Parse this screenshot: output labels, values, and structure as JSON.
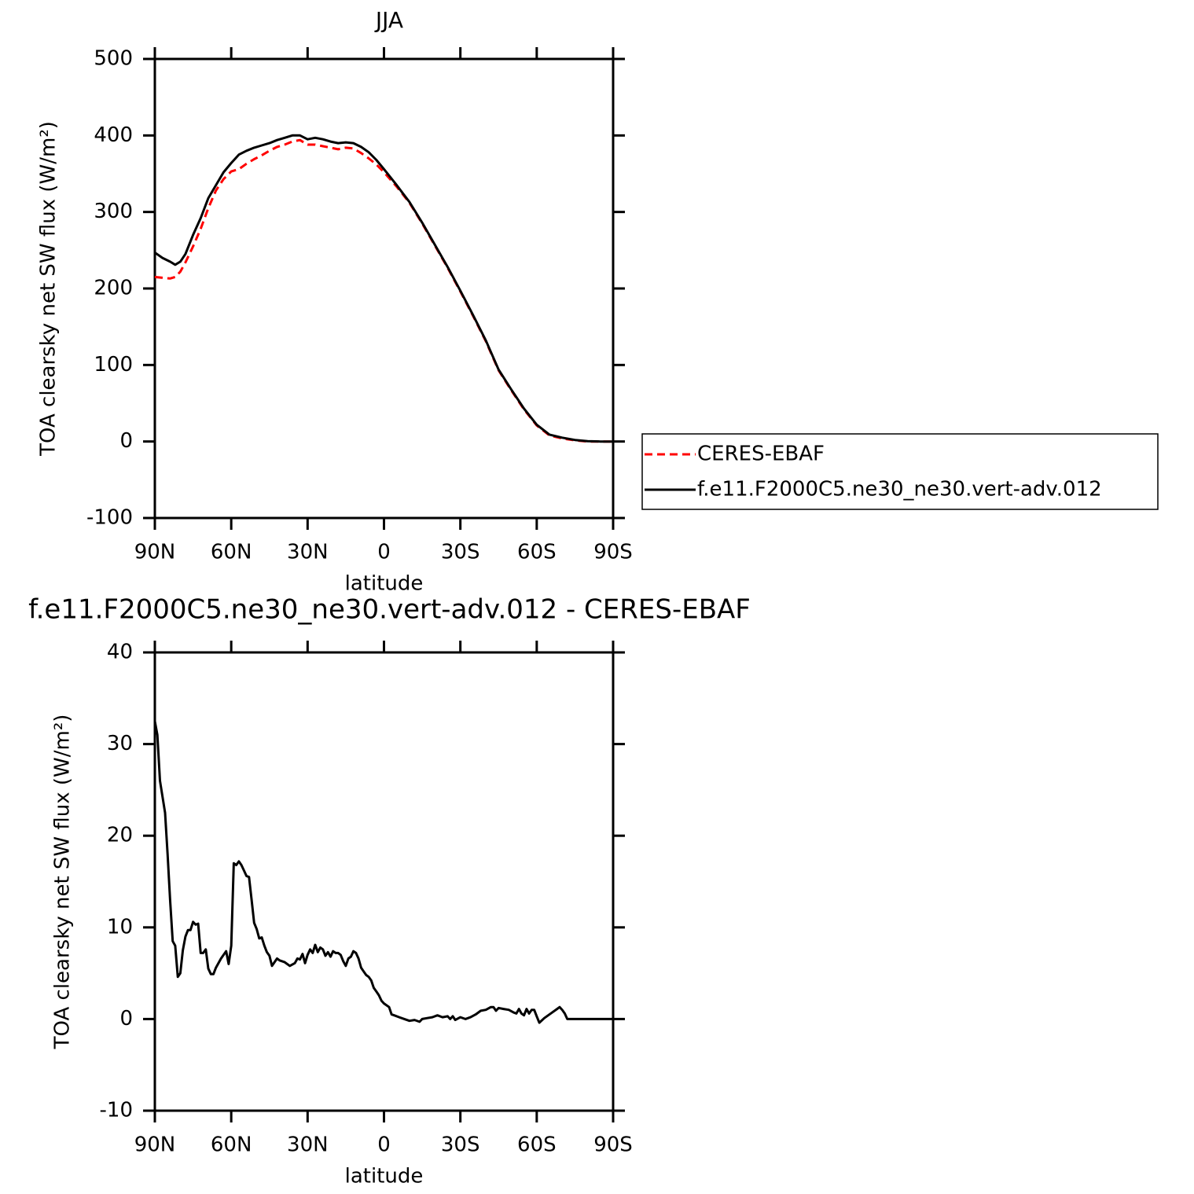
{
  "chart_data": [
    {
      "type": "line",
      "title": "JJA",
      "xlabel": "latitude",
      "ylabel": "TOA clearsky net SW flux (W/m²)",
      "xlim": [
        90,
        -90
      ],
      "ylim": [
        -100,
        500
      ],
      "xticks": [
        {
          "value": 90,
          "label": "90N"
        },
        {
          "value": 60,
          "label": "60N"
        },
        {
          "value": 30,
          "label": "30N"
        },
        0,
        {
          "value": -30,
          "label": "30S"
        },
        {
          "value": -60,
          "label": "60S"
        },
        {
          "value": -90,
          "label": "90S"
        }
      ],
      "yticks": [
        -100,
        0,
        100,
        200,
        300,
        400,
        500
      ],
      "legend": "right",
      "x": [
        90,
        87,
        84,
        82,
        80,
        78,
        75,
        72,
        69,
        66,
        63,
        60,
        57,
        54,
        51,
        48,
        45,
        42,
        39,
        36,
        33,
        30,
        27,
        24,
        21,
        18,
        15,
        12,
        9,
        6,
        3,
        0,
        -5,
        -10,
        -15,
        -20,
        -25,
        -30,
        -35,
        -40,
        -45,
        -50,
        -55,
        -60,
        -65,
        -70,
        -75,
        -80,
        -85,
        -90
      ],
      "series": [
        {
          "name": "CERES-EBAF",
          "color": "#ff0000",
          "dashed": true,
          "values": [
            215,
            214,
            213,
            215,
            222,
            234,
            255,
            278,
            305,
            328,
            343,
            353,
            356,
            363,
            369,
            374,
            380,
            385,
            388,
            392,
            394,
            388,
            388,
            386,
            384,
            382,
            384,
            383,
            377,
            370,
            362,
            352,
            333,
            312,
            285,
            256,
            227,
            196,
            164,
            131,
            93,
            67,
            42,
            21,
            8,
            4,
            1.5,
            0,
            0,
            0
          ]
        },
        {
          "name": "f.e11.F2000C5.ne30_ne30.vert-adv.012",
          "color": "#000000",
          "dashed": false,
          "values": [
            247,
            240,
            235,
            231,
            235,
            245,
            270,
            292,
            318,
            335,
            352,
            364,
            375,
            380,
            384,
            387,
            390,
            394,
            397,
            400,
            400,
            395,
            397,
            395,
            392,
            390,
            391,
            390,
            385,
            378,
            368,
            356,
            335,
            313,
            286,
            257,
            228,
            197,
            165,
            132,
            94,
            68,
            43,
            22,
            9,
            5,
            2,
            0.5,
            0,
            0
          ]
        }
      ]
    },
    {
      "type": "line",
      "title": "f.e11.F2000C5.ne30_ne30.vert-adv.012 - CERES-EBAF",
      "xlabel": "latitude",
      "ylabel": "TOA clearsky net SW flux (W/m²)",
      "xlim": [
        90,
        -90
      ],
      "ylim": [
        -10,
        40
      ],
      "xticks": [
        {
          "value": 90,
          "label": "90N"
        },
        {
          "value": 60,
          "label": "60N"
        },
        {
          "value": 30,
          "label": "30N"
        },
        0,
        {
          "value": -30,
          "label": "30S"
        },
        {
          "value": -60,
          "label": "60S"
        },
        {
          "value": -90,
          "label": "90S"
        }
      ],
      "yticks": [
        -10,
        0,
        10,
        20,
        30,
        40
      ],
      "color": "#000000",
      "x": [
        90,
        89,
        88,
        86,
        85,
        84,
        83,
        82,
        81,
        80,
        79,
        78,
        77,
        76,
        75,
        74,
        73,
        72,
        71,
        70,
        69,
        68,
        67,
        66,
        64,
        62,
        61,
        60,
        59,
        58,
        57,
        56,
        55,
        54,
        53,
        52,
        51,
        50,
        49,
        48,
        47,
        46,
        45,
        44,
        43,
        42,
        41,
        39,
        37,
        35,
        34,
        33,
        32,
        31,
        30,
        29,
        28,
        27,
        26,
        25,
        24,
        23,
        22,
        21,
        20,
        19,
        18,
        17,
        16,
        15,
        14,
        13,
        12,
        11,
        10,
        9,
        8,
        7,
        6,
        5,
        4,
        3,
        2,
        1,
        0,
        -2,
        -3,
        -4,
        -6,
        -8,
        -10,
        -12,
        -14,
        -15,
        -17,
        -19,
        -21,
        -23,
        -25,
        -26,
        -27,
        -28,
        -30,
        -32,
        -34,
        -36,
        -38,
        -40,
        -42,
        -43,
        -44,
        -45,
        -47,
        -49,
        -51,
        -52,
        -53,
        -54,
        -55,
        -56,
        -57,
        -58,
        -59,
        -60,
        -61,
        -63,
        -66,
        -68,
        -69,
        -70,
        -71,
        -72,
        -74,
        -90
      ],
      "values": [
        32.5,
        31,
        26,
        22.5,
        18,
        13,
        8.5,
        8,
        4.6,
        5,
        7.5,
        9,
        9.7,
        9.7,
        10.6,
        10.3,
        10.4,
        7.2,
        7.2,
        7.6,
        5.5,
        4.9,
        4.9,
        5.6,
        6.6,
        7.4,
        6,
        8,
        17,
        16.8,
        17.2,
        16.8,
        16.2,
        15.6,
        15.5,
        13,
        10.5,
        9.8,
        8.8,
        8.9,
        8,
        7.3,
        6.9,
        5.8,
        6.2,
        6.6,
        6.4,
        6.2,
        5.8,
        6.1,
        6.6,
        6.5,
        7.1,
        6.1,
        7,
        7.6,
        7.2,
        8.1,
        7.3,
        7.8,
        7.6,
        6.9,
        7.3,
        6.8,
        7.4,
        7.2,
        7.2,
        7,
        6.3,
        5.8,
        6.6,
        6.8,
        7.4,
        7.2,
        6.6,
        5.6,
        5.2,
        4.8,
        4.6,
        4.2,
        3.4,
        3,
        2.6,
        2,
        1.7,
        1.3,
        0.5,
        0.4,
        0.2,
        0,
        -0.2,
        -0.1,
        -0.3,
        0,
        0.1,
        0.2,
        0.4,
        0.2,
        0.3,
        0,
        0.3,
        -0.1,
        0.2,
        0,
        0.2,
        0.5,
        0.9,
        1,
        1.3,
        1.3,
        0.9,
        1.2,
        1.1,
        1,
        0.7,
        0.6,
        1.1,
        0.6,
        0.4,
        1.1,
        0.6,
        1,
        1,
        0.3,
        -0.4,
        0.1,
        0.7,
        1.1,
        1.3,
        1,
        0.6,
        0,
        0,
        0
      ]
    }
  ]
}
